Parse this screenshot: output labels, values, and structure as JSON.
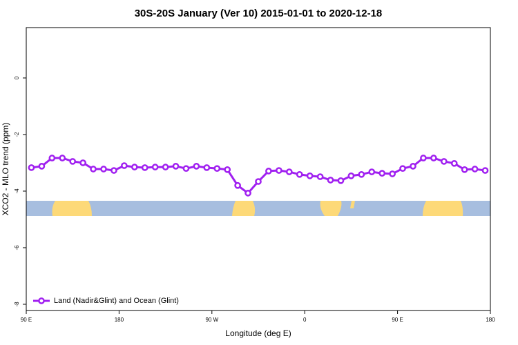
{
  "chart_data": {
    "type": "line",
    "title": "30S-20S January (Ver 10)   2015-01-01 to 2020-12-18",
    "x_label": "Longitude (deg E)",
    "y_label": "XCO2 - MLO trend (ppm)",
    "x": [
      95,
      105,
      115,
      125,
      135,
      145,
      155,
      165,
      175,
      185,
      195,
      205,
      215,
      225,
      235,
      245,
      255,
      265,
      275,
      285,
      295,
      305,
      315,
      325,
      335,
      345,
      355,
      365,
      375,
      385,
      395,
      405,
      415,
      425,
      435,
      445,
      455,
      465,
      475,
      485,
      495,
      505,
      515,
      525,
      535
    ],
    "series": [
      {
        "name": "Land (Nadir&Glint) and Ocean (Glint)",
        "color": "#a020f0",
        "values": [
          -3.17,
          -3.12,
          -2.83,
          -2.83,
          -2.95,
          -3.0,
          -3.22,
          -3.22,
          -3.27,
          -3.1,
          -3.15,
          -3.17,
          -3.15,
          -3.15,
          -3.12,
          -3.2,
          -3.12,
          -3.17,
          -3.2,
          -3.24,
          -3.8,
          -4.07,
          -3.66,
          -3.29,
          -3.27,
          -3.32,
          -3.41,
          -3.46,
          -3.49,
          -3.61,
          -3.63,
          -3.46,
          -3.41,
          -3.32,
          -3.37,
          -3.39,
          -3.2,
          -3.12,
          -2.83,
          -2.83,
          -2.95,
          -3.02,
          -3.24,
          -3.22,
          -3.27
        ]
      }
    ],
    "xlim": [
      90,
      540
    ],
    "xticks": [
      {
        "value": 90,
        "label": "90 E"
      },
      180,
      {
        "value": 270,
        "label": "90 W"
      },
      {
        "value": 360,
        "label": "0"
      },
      {
        "value": 450,
        "label": "90 E"
      },
      {
        "value": 540,
        "label": "180"
      }
    ],
    "ylim": [
      -8.22,
      1.78
    ],
    "yticks": [
      0,
      -2,
      -4,
      -6,
      -8
    ],
    "legend": "bottom-left"
  }
}
